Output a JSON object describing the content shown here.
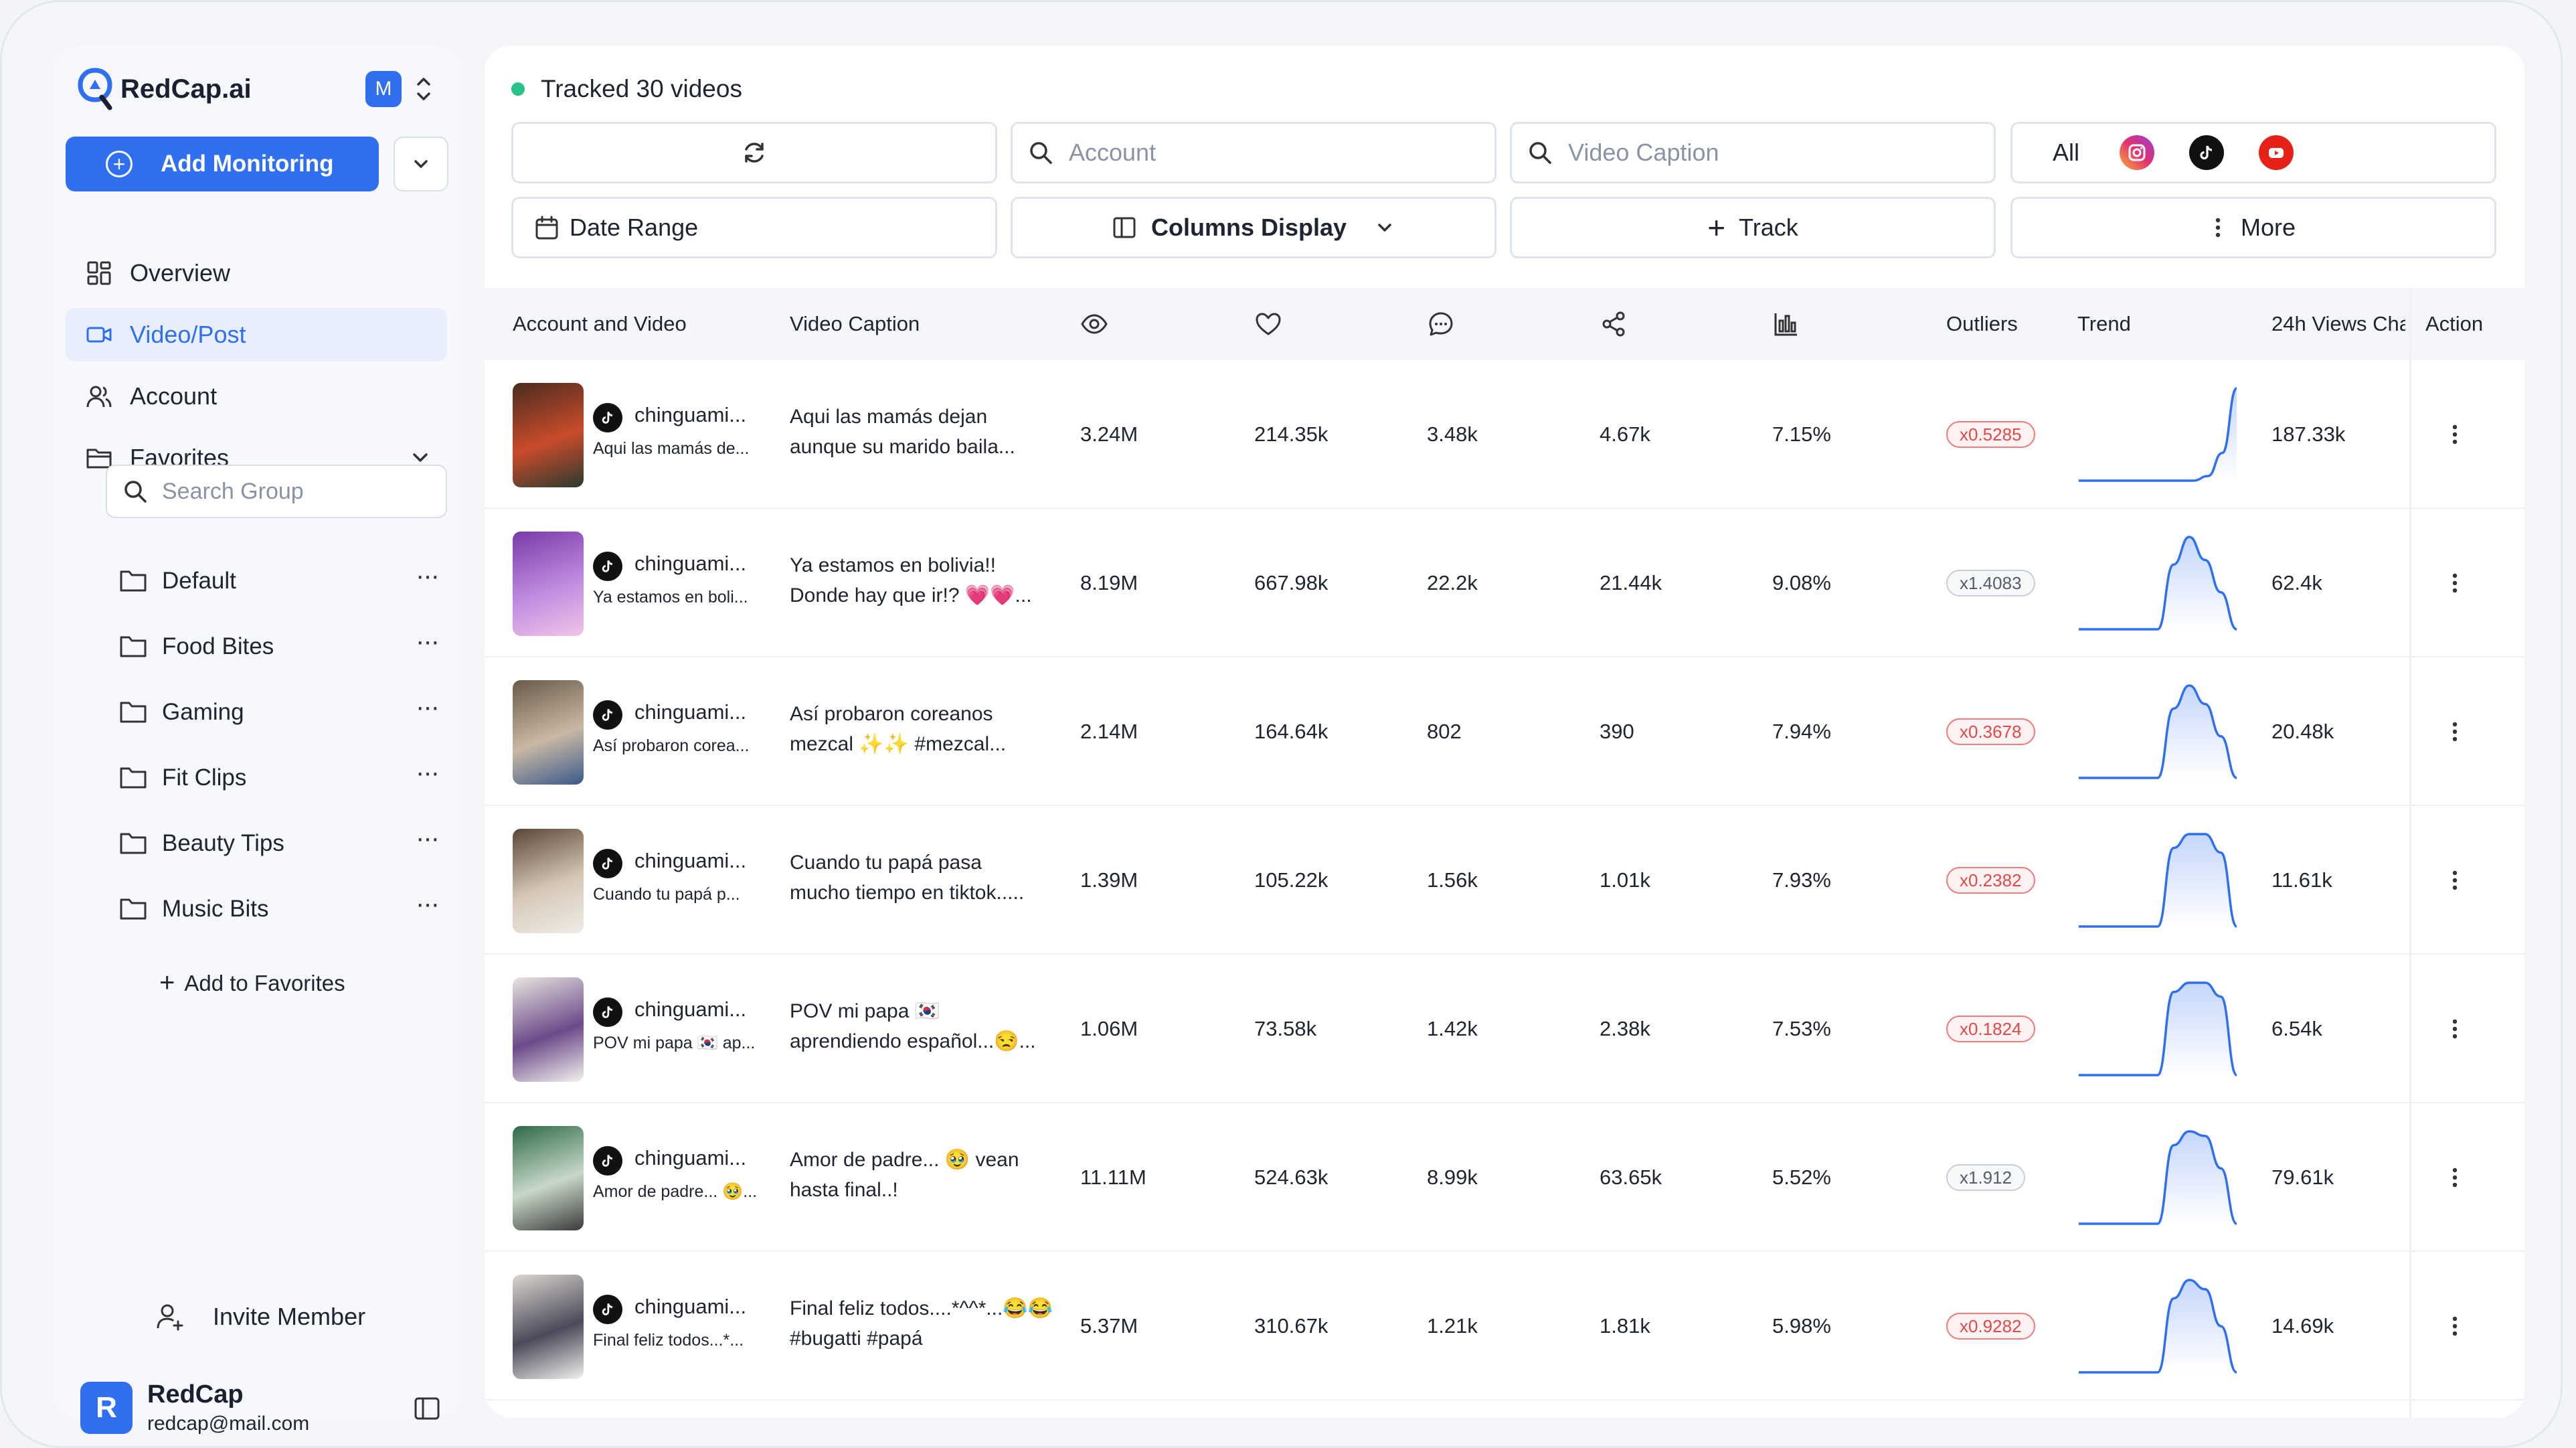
{
  "brand": {
    "name": "RedCap.ai",
    "workspace_initial": "M"
  },
  "sidebar": {
    "add_monitoring": "Add Monitoring",
    "nav": [
      {
        "label": "Overview",
        "icon": "grid-icon"
      },
      {
        "label": "Video/Post",
        "icon": "video-icon",
        "active": true
      },
      {
        "label": "Account",
        "icon": "users-icon"
      },
      {
        "label": "Favorites",
        "icon": "folder-open-icon"
      }
    ],
    "search_group_placeholder": "Search Group",
    "favorites": [
      "Default",
      "Food Bites",
      "Gaming",
      "Fit Clips",
      "Beauty Tips",
      "Music Bits"
    ],
    "add_to_favorites": "Add to Favorites",
    "invite_member": "Invite Member",
    "user": {
      "initial": "R",
      "name": "RedCap",
      "email": "redcap@mail.com"
    }
  },
  "main": {
    "tracked_label": "Tracked 30 videos",
    "account_placeholder": "Account",
    "caption_placeholder": "Video Caption",
    "platform_all": "All",
    "date_range": "Date Range",
    "columns_display": "Columns Display",
    "track": "Track",
    "more": "More"
  },
  "table": {
    "headers": {
      "account_video": "Account and Video",
      "caption": "Video Caption",
      "views_icon": "eye-icon",
      "likes_icon": "heart-icon",
      "comments_icon": "comment-icon",
      "shares_icon": "share-icon",
      "engagement_icon": "bar-chart-icon",
      "outliers": "Outliers",
      "trend": "Trend",
      "views24": "24h Views Cha",
      "action": "Action"
    },
    "rows": [
      {
        "account": "chinguami...",
        "sub": "Aqui las mamás de...",
        "cap1": "Aqui las mamás dejan",
        "cap2": "aunque su marido baila...",
        "views": "3.24M",
        "likes": "214.35k",
        "comments": "3.48k",
        "shares": "4.67k",
        "rate": "7.15%",
        "outlier": "x0.5285",
        "outlier_type": "red",
        "views24": "187.33k",
        "trend": [
          0,
          0,
          0,
          0,
          0,
          0,
          0,
          0,
          0,
          0.05,
          0.3,
          1
        ]
      },
      {
        "account": "chinguami...",
        "sub": "Ya estamos en boli...",
        "cap1": "Ya estamos en bolivia!!",
        "cap2": "Donde hay que ir!? 💗💗...",
        "views": "8.19M",
        "likes": "667.98k",
        "comments": "22.2k",
        "shares": "21.44k",
        "rate": "9.08%",
        "outlier": "x1.4083",
        "outlier_type": "gray",
        "views24": "62.4k",
        "trend": [
          0,
          0,
          0,
          0,
          0,
          0,
          0.7,
          1,
          0.75,
          0.4,
          0
        ]
      },
      {
        "account": "chinguami...",
        "sub": "Así probaron corea...",
        "cap1": "Así probaron coreanos",
        "cap2": "mezcal ✨✨ #mezcal...",
        "views": "2.14M",
        "likes": "164.64k",
        "comments": "802",
        "shares": "390",
        "rate": "7.94%",
        "outlier": "x0.3678",
        "outlier_type": "red",
        "views24": "20.48k",
        "trend": [
          0,
          0,
          0,
          0,
          0,
          0,
          0.75,
          1,
          0.8,
          0.45,
          0
        ]
      },
      {
        "account": "chinguami...",
        "sub": "Cuando tu papá p...",
        "cap1": "Cuando tu papá pasa",
        "cap2": "mucho tiempo en tiktok.....",
        "views": "1.39M",
        "likes": "105.22k",
        "comments": "1.56k",
        "shares": "1.01k",
        "rate": "7.93%",
        "outlier": "x0.2382",
        "outlier_type": "red",
        "views24": "11.61k",
        "trend": [
          0,
          0,
          0,
          0,
          0,
          0,
          0.85,
          1,
          1,
          0.8,
          0
        ]
      },
      {
        "account": "chinguami...",
        "sub": "POV mi papa 🇰🇷 ap...",
        "cap1": "POV mi papa 🇰🇷",
        "cap2": "aprendiendo español...😒...",
        "views": "1.06M",
        "likes": "73.58k",
        "comments": "1.42k",
        "shares": "2.38k",
        "rate": "7.53%",
        "outlier": "x0.1824",
        "outlier_type": "red",
        "views24": "6.54k",
        "trend": [
          0,
          0,
          0,
          0,
          0,
          0,
          0.9,
          1,
          1,
          0.85,
          0
        ]
      },
      {
        "account": "chinguami...",
        "sub": "Amor de padre... 🥹...",
        "cap1": "Amor de padre... 🥹 vean",
        "cap2": "hasta final..!",
        "views": "11.11M",
        "likes": "524.63k",
        "comments": "8.99k",
        "shares": "63.65k",
        "rate": "5.52%",
        "outlier": "x1.912",
        "outlier_type": "gray",
        "views24": "79.61k",
        "trend": [
          0,
          0,
          0,
          0,
          0,
          0,
          0.85,
          1,
          0.95,
          0.6,
          0
        ]
      },
      {
        "account": "chinguami...",
        "sub": "Final feliz todos...*...",
        "cap1": "Final feliz todos....*^^*...😂😂",
        "cap2": "#bugatti #papá",
        "views": "5.37M",
        "likes": "310.67k",
        "comments": "1.21k",
        "shares": "1.81k",
        "rate": "5.98%",
        "outlier": "x0.9282",
        "outlier_type": "red",
        "views24": "14.69k",
        "trend": [
          0,
          0,
          0,
          0,
          0,
          0,
          0.8,
          1,
          0.9,
          0.5,
          0
        ]
      }
    ]
  }
}
